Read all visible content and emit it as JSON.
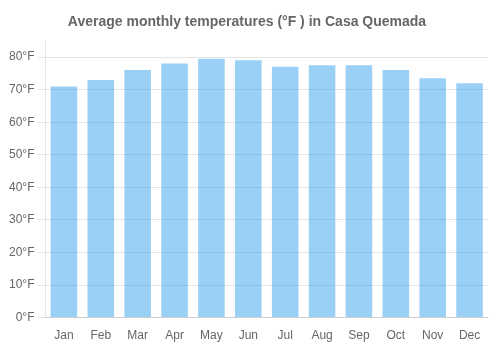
{
  "chart_data": {
    "type": "bar",
    "title": "Average monthly temperatures (°F ) in Casa Quemada",
    "categories": [
      "Jan",
      "Feb",
      "Mar",
      "Apr",
      "May",
      "Jun",
      "Jul",
      "Aug",
      "Sep",
      "Oct",
      "Nov",
      "Dec"
    ],
    "values": [
      71,
      73,
      76,
      78,
      79.5,
      79,
      77,
      77.5,
      77.5,
      76,
      73.5,
      72
    ],
    "ylim": [
      0,
      85
    ],
    "yticks": [
      {
        "value": 0,
        "label": "0°F"
      },
      {
        "value": 10,
        "label": "10°F"
      },
      {
        "value": 20,
        "label": "20°F"
      },
      {
        "value": 30,
        "label": "30°F"
      },
      {
        "value": 40,
        "label": "40°F"
      },
      {
        "value": 50,
        "label": "50°F"
      },
      {
        "value": 60,
        "label": "60°F"
      },
      {
        "value": 70,
        "label": "70°F"
      },
      {
        "value": 80,
        "label": "80°F"
      }
    ],
    "grid": true
  }
}
